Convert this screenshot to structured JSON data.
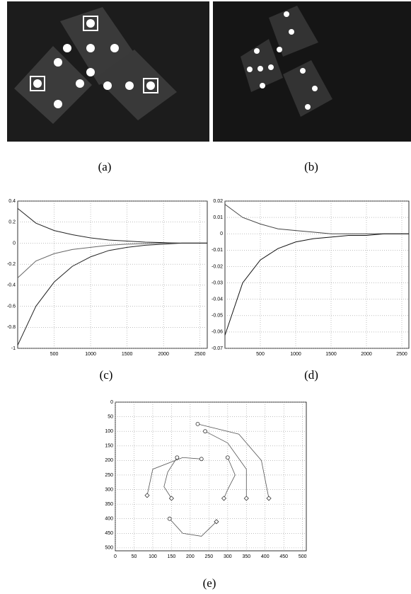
{
  "panels": {
    "a": "(a)",
    "b": "(b)",
    "c": "(c)",
    "d": "(d)",
    "e": "(e)"
  },
  "chart_data": [
    {
      "type": "line",
      "x": [
        0,
        250,
        500,
        750,
        1000,
        1250,
        1500,
        1750,
        2000,
        2250,
        2500,
        2600
      ],
      "xlim": [
        0,
        2600
      ],
      "xticks": [
        500,
        1000,
        1500,
        2000,
        2500
      ],
      "ylim": [
        -1,
        0.4
      ],
      "yticks": [
        -1,
        -0.8,
        -0.6,
        -0.4,
        -0.2,
        0,
        0.2,
        0.4
      ],
      "grid": true,
      "series": [
        {
          "color": "#222222",
          "values": [
            0.33,
            0.19,
            0.12,
            0.08,
            0.05,
            0.03,
            0.02,
            0.01,
            0.005,
            0,
            0,
            0
          ]
        },
        {
          "color": "#666666",
          "values": [
            -0.33,
            -0.17,
            -0.1,
            -0.06,
            -0.04,
            -0.02,
            -0.01,
            -0.005,
            0,
            0,
            0,
            0
          ]
        },
        {
          "color": "#222222",
          "values": [
            -0.97,
            -0.6,
            -0.37,
            -0.22,
            -0.13,
            -0.07,
            -0.04,
            -0.02,
            -0.01,
            0,
            0,
            0
          ]
        }
      ]
    },
    {
      "type": "line",
      "x": [
        0,
        250,
        500,
        750,
        1000,
        1250,
        1500,
        1750,
        2000,
        2250,
        2500,
        2600
      ],
      "xlim": [
        0,
        2600
      ],
      "xticks": [
        500,
        1000,
        1500,
        2000,
        2500
      ],
      "ylim": [
        -0.07,
        0.02
      ],
      "yticks": [
        -0.07,
        -0.06,
        -0.05,
        -0.04,
        -0.03,
        -0.02,
        -0.01,
        0,
        0.01,
        0.02
      ],
      "grid": true,
      "series": [
        {
          "color": "#444444",
          "values": [
            0.018,
            0.01,
            0.006,
            0.003,
            0.002,
            0.001,
            0,
            0,
            0,
            0,
            0,
            0
          ]
        },
        {
          "color": "#111111",
          "values": [
            -0.062,
            -0.03,
            -0.016,
            -0.009,
            -0.005,
            -0.003,
            -0.002,
            -0.001,
            -0.001,
            0,
            0,
            0
          ]
        }
      ]
    },
    {
      "type": "trajectory",
      "xlim": [
        0,
        510
      ],
      "xticks": [
        0,
        50,
        100,
        150,
        200,
        250,
        300,
        350,
        400,
        450,
        500
      ],
      "ylim": [
        0,
        510
      ],
      "y_reversed": true,
      "yticks": [
        0,
        50,
        100,
        150,
        200,
        250,
        300,
        350,
        400,
        450,
        500
      ],
      "grid": true,
      "series": [
        {
          "color": "#555555",
          "x": [
            220,
            330,
            390,
            410
          ],
          "values": [
            75,
            110,
            200,
            330
          ]
        },
        {
          "color": "#555555",
          "x": [
            240,
            300,
            350,
            350
          ],
          "values": [
            100,
            140,
            230,
            330
          ]
        },
        {
          "color": "#555555",
          "x": [
            300,
            320,
            300,
            290
          ],
          "values": [
            190,
            250,
            300,
            330
          ]
        },
        {
          "color": "#555555",
          "x": [
            230,
            180,
            100,
            85
          ],
          "values": [
            195,
            190,
            230,
            320
          ]
        },
        {
          "color": "#555555",
          "x": [
            145,
            180,
            230,
            270
          ],
          "values": [
            400,
            450,
            460,
            410
          ]
        },
        {
          "color": "#555555",
          "x": [
            165,
            140,
            130,
            150
          ],
          "values": [
            190,
            240,
            290,
            330
          ]
        }
      ]
    }
  ]
}
